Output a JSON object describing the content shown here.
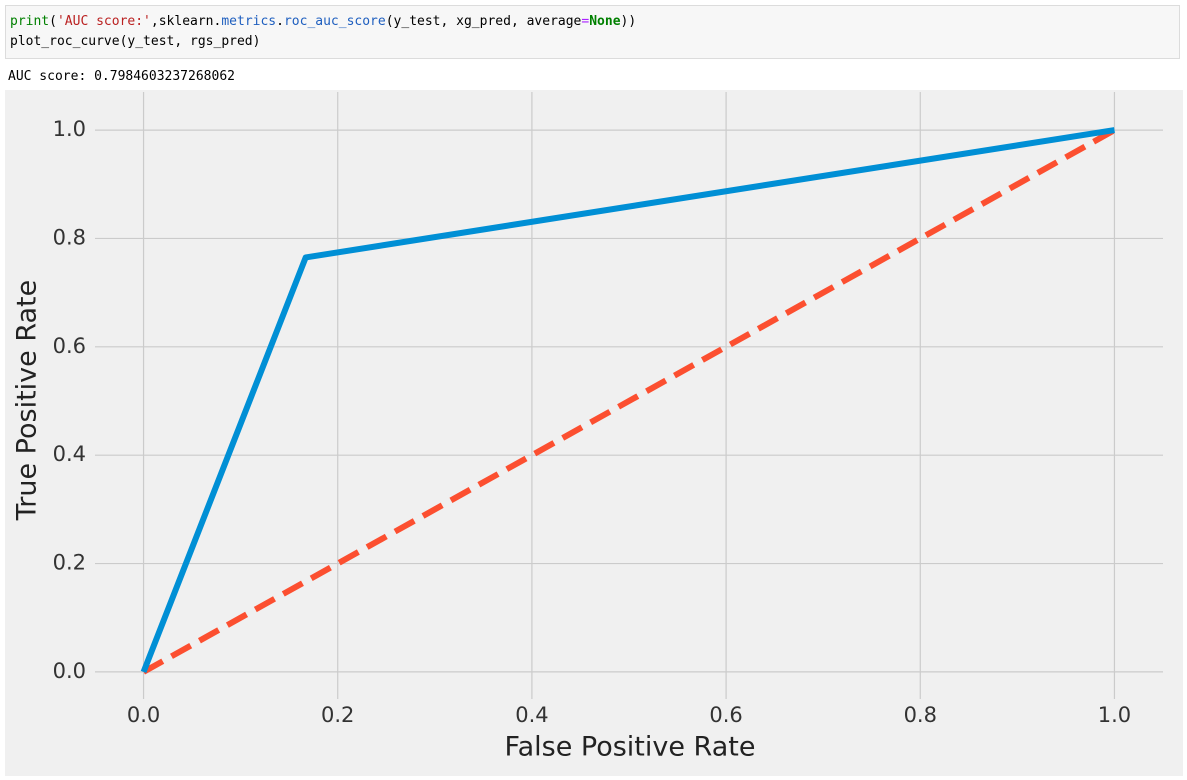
{
  "code": {
    "lines": [
      [
        "print",
        "(",
        "'AUC score:'",
        ",sklearn.",
        "metrics",
        ".",
        "roc_auc_score",
        "(y_test, xg_pred, average",
        "=",
        "None",
        "))"
      ],
      [
        "plot_roc_curve(y_test, rgs_pred)"
      ]
    ]
  },
  "output": {
    "text": "AUC score: 0.7984603237268062"
  },
  "chart_data": {
    "type": "line",
    "x_label": "False Positive Rate",
    "y_label": "True Positive Rate",
    "series": [
      {
        "color": "#008fd5",
        "x": [
          0,
          0.167,
          1
        ],
        "values": [
          0,
          0.765,
          1
        ],
        "style": "solid"
      },
      {
        "color": "#fc4f30",
        "x": [
          0,
          1
        ],
        "values": [
          0,
          1
        ],
        "style": "dashed"
      }
    ],
    "xlim": [
      -0.05,
      1.05
    ],
    "ylim": [
      -0.05,
      1.05
    ],
    "xticks": [
      {
        "value": 0,
        "label": "0.0"
      },
      0.2,
      0.4,
      0.6,
      0.8,
      {
        "value": 1,
        "label": "1.0"
      }
    ],
    "yticks": [
      {
        "value": 0,
        "label": "0.0"
      },
      0.2,
      0.4,
      0.6,
      0.8,
      {
        "value": 1,
        "label": "1.0"
      }
    ],
    "grid": true
  }
}
